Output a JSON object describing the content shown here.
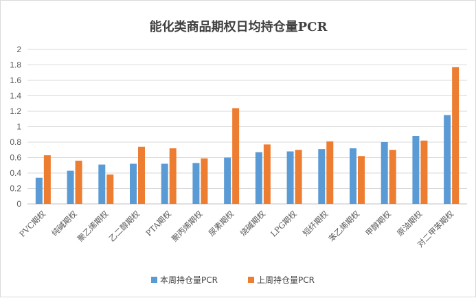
{
  "chart_data": {
    "type": "bar",
    "title": "能化类商品期权日均持仓量PCR",
    "categories": [
      "PVC期权",
      "纯碱期权",
      "聚乙烯期权",
      "乙二醇期权",
      "PTA期权",
      "聚丙烯期权",
      "尿素期权",
      "烧碱期权",
      "LPG期权",
      "短纤期权",
      "苯乙烯期权",
      "甲醇期权",
      "原油期权",
      "对二甲苯期权"
    ],
    "series": [
      {
        "name": "本周持仓量PCR",
        "color": "#5b9bd5",
        "values": [
          0.34,
          0.43,
          0.51,
          0.52,
          0.52,
          0.53,
          0.6,
          0.67,
          0.68,
          0.71,
          0.72,
          0.8,
          0.88,
          1.15
        ]
      },
      {
        "name": "上周持仓量PCR",
        "color": "#ed7d31",
        "values": [
          0.63,
          0.56,
          0.38,
          0.74,
          0.72,
          0.59,
          1.24,
          0.77,
          0.7,
          0.81,
          0.62,
          0.7,
          0.82,
          1.77
        ]
      }
    ],
    "ylim": [
      0,
      2
    ],
    "yticks": [
      "0",
      "0.2",
      "0.4",
      "0.6",
      "0.8",
      "1",
      "1.2",
      "1.4",
      "1.6",
      "1.8",
      "2"
    ],
    "xlabel": "",
    "ylabel": "",
    "grid": true,
    "legend": "bottom-center"
  }
}
